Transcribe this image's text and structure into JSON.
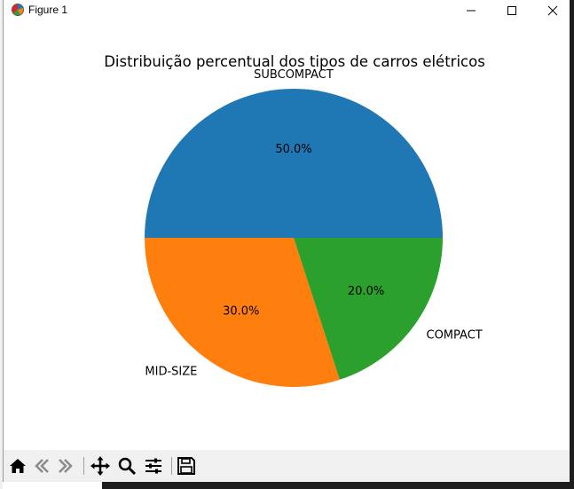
{
  "window": {
    "title": "Figure 1",
    "icon": "matplotlib-icon"
  },
  "chart_data": {
    "type": "pie",
    "title": "Distribuição percentual dos tipos de carros elétricos",
    "categories": [
      "SUBCOMPACT",
      "MID-SIZE",
      "COMPACT"
    ],
    "values": [
      50.0,
      30.0,
      20.0
    ],
    "labels": [
      "50.0%",
      "30.0%",
      "20.0%"
    ],
    "colors": [
      "#1f77b4",
      "#ff7f0e",
      "#2ca02c"
    ],
    "start_angle": 0,
    "direction": "counterclockwise"
  },
  "toolbar": {
    "buttons": [
      {
        "name": "home-icon",
        "tooltip": ""
      },
      {
        "name": "back-icon",
        "tooltip": ""
      },
      {
        "name": "forward-icon",
        "tooltip": ""
      },
      {
        "name": "pan-icon",
        "tooltip": ""
      },
      {
        "name": "zoom-icon",
        "tooltip": ""
      },
      {
        "name": "subplots-icon",
        "tooltip": ""
      },
      {
        "name": "save-icon",
        "tooltip": ""
      }
    ]
  }
}
